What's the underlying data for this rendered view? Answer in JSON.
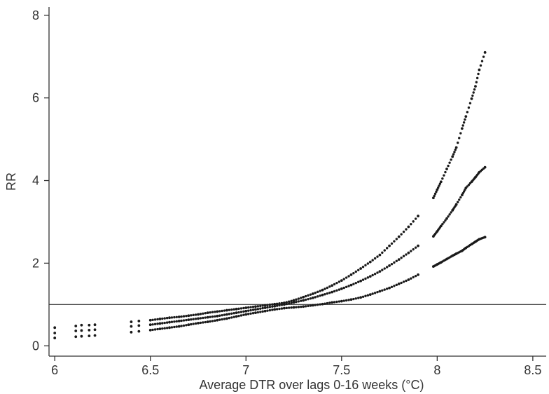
{
  "chart_data": {
    "type": "scatter",
    "title": "",
    "xlabel": "Average DTR over lags 0-16 weeks (°C)",
    "ylabel": "RR",
    "xlim": [
      5.97,
      8.57
    ],
    "ylim": [
      -0.25,
      8.2
    ],
    "xticks": [
      6,
      6.5,
      7,
      7.5,
      8,
      8.5
    ],
    "xtick_labels": [
      "6",
      "6.5",
      "7",
      "7.5",
      "8",
      "8.5"
    ],
    "yticks": [
      0,
      2,
      4,
      6,
      8
    ],
    "ytick_labels": [
      "0",
      "2",
      "4",
      "6",
      "8"
    ],
    "grid": false,
    "reference_line": {
      "y": 1
    },
    "marker_color": "#1a1a1a",
    "series": [
      {
        "role": "upper",
        "x": [
          6.0,
          6.11,
          6.14,
          6.18,
          6.21,
          6.4,
          6.44,
          6.5,
          6.55,
          6.6,
          6.65,
          6.7,
          6.75,
          6.8,
          6.85,
          6.9,
          6.95,
          7.0,
          7.05,
          7.1,
          7.15,
          7.2,
          7.25,
          7.3,
          7.35,
          7.4,
          7.45,
          7.5,
          7.55,
          7.6,
          7.65,
          7.7,
          7.75,
          7.8,
          7.85,
          7.9,
          7.98,
          8.0,
          8.02,
          8.05,
          8.08,
          8.1,
          8.13,
          8.15,
          8.18,
          8.2,
          8.22,
          8.25
        ],
        "y": [
          0.44,
          0.48,
          0.5,
          0.5,
          0.51,
          0.58,
          0.6,
          0.62,
          0.65,
          0.68,
          0.7,
          0.73,
          0.76,
          0.8,
          0.83,
          0.86,
          0.89,
          0.92,
          0.95,
          0.98,
          1.01,
          1.04,
          1.1,
          1.18,
          1.26,
          1.35,
          1.46,
          1.58,
          1.72,
          1.87,
          2.03,
          2.2,
          2.42,
          2.64,
          2.88,
          3.14,
          3.58,
          3.78,
          3.97,
          4.28,
          4.58,
          4.8,
          5.26,
          5.55,
          5.98,
          6.28,
          6.68,
          7.1
        ]
      },
      {
        "role": "estimate",
        "x": [
          6.0,
          6.11,
          6.14,
          6.18,
          6.21,
          6.4,
          6.44,
          6.5,
          6.55,
          6.6,
          6.65,
          6.7,
          6.75,
          6.8,
          6.85,
          6.9,
          6.95,
          7.0,
          7.05,
          7.1,
          7.15,
          7.2,
          7.25,
          7.3,
          7.35,
          7.4,
          7.45,
          7.5,
          7.55,
          7.6,
          7.65,
          7.7,
          7.75,
          7.8,
          7.85,
          7.9,
          7.98,
          8.0,
          8.02,
          8.05,
          8.08,
          8.1,
          8.13,
          8.15,
          8.18,
          8.2,
          8.22,
          8.25
        ],
        "y": [
          0.31,
          0.36,
          0.37,
          0.38,
          0.39,
          0.47,
          0.49,
          0.51,
          0.54,
          0.57,
          0.6,
          0.63,
          0.66,
          0.69,
          0.72,
          0.76,
          0.8,
          0.84,
          0.88,
          0.92,
          0.96,
          1.0,
          1.05,
          1.1,
          1.16,
          1.23,
          1.3,
          1.38,
          1.47,
          1.57,
          1.68,
          1.8,
          1.94,
          2.09,
          2.25,
          2.42,
          2.65,
          2.77,
          2.9,
          3.08,
          3.28,
          3.42,
          3.65,
          3.82,
          3.97,
          4.08,
          4.2,
          4.32
        ]
      },
      {
        "role": "lower",
        "x": [
          6.0,
          6.11,
          6.14,
          6.18,
          6.21,
          6.4,
          6.44,
          6.5,
          6.55,
          6.6,
          6.65,
          6.7,
          6.75,
          6.8,
          6.85,
          6.9,
          6.95,
          7.0,
          7.05,
          7.1,
          7.15,
          7.2,
          7.25,
          7.3,
          7.35,
          7.4,
          7.45,
          7.5,
          7.55,
          7.6,
          7.65,
          7.7,
          7.75,
          7.8,
          7.85,
          7.9,
          7.98,
          8.0,
          8.02,
          8.05,
          8.08,
          8.1,
          8.13,
          8.15,
          8.18,
          8.2,
          8.22,
          8.25
        ],
        "y": [
          0.19,
          0.22,
          0.23,
          0.24,
          0.25,
          0.33,
          0.35,
          0.38,
          0.41,
          0.44,
          0.47,
          0.51,
          0.55,
          0.58,
          0.62,
          0.66,
          0.71,
          0.76,
          0.8,
          0.84,
          0.88,
          0.91,
          0.93,
          0.95,
          0.98,
          1.01,
          1.05,
          1.08,
          1.12,
          1.17,
          1.24,
          1.32,
          1.4,
          1.5,
          1.6,
          1.72,
          1.92,
          1.97,
          2.02,
          2.1,
          2.18,
          2.23,
          2.3,
          2.37,
          2.46,
          2.52,
          2.58,
          2.63
        ]
      }
    ]
  }
}
